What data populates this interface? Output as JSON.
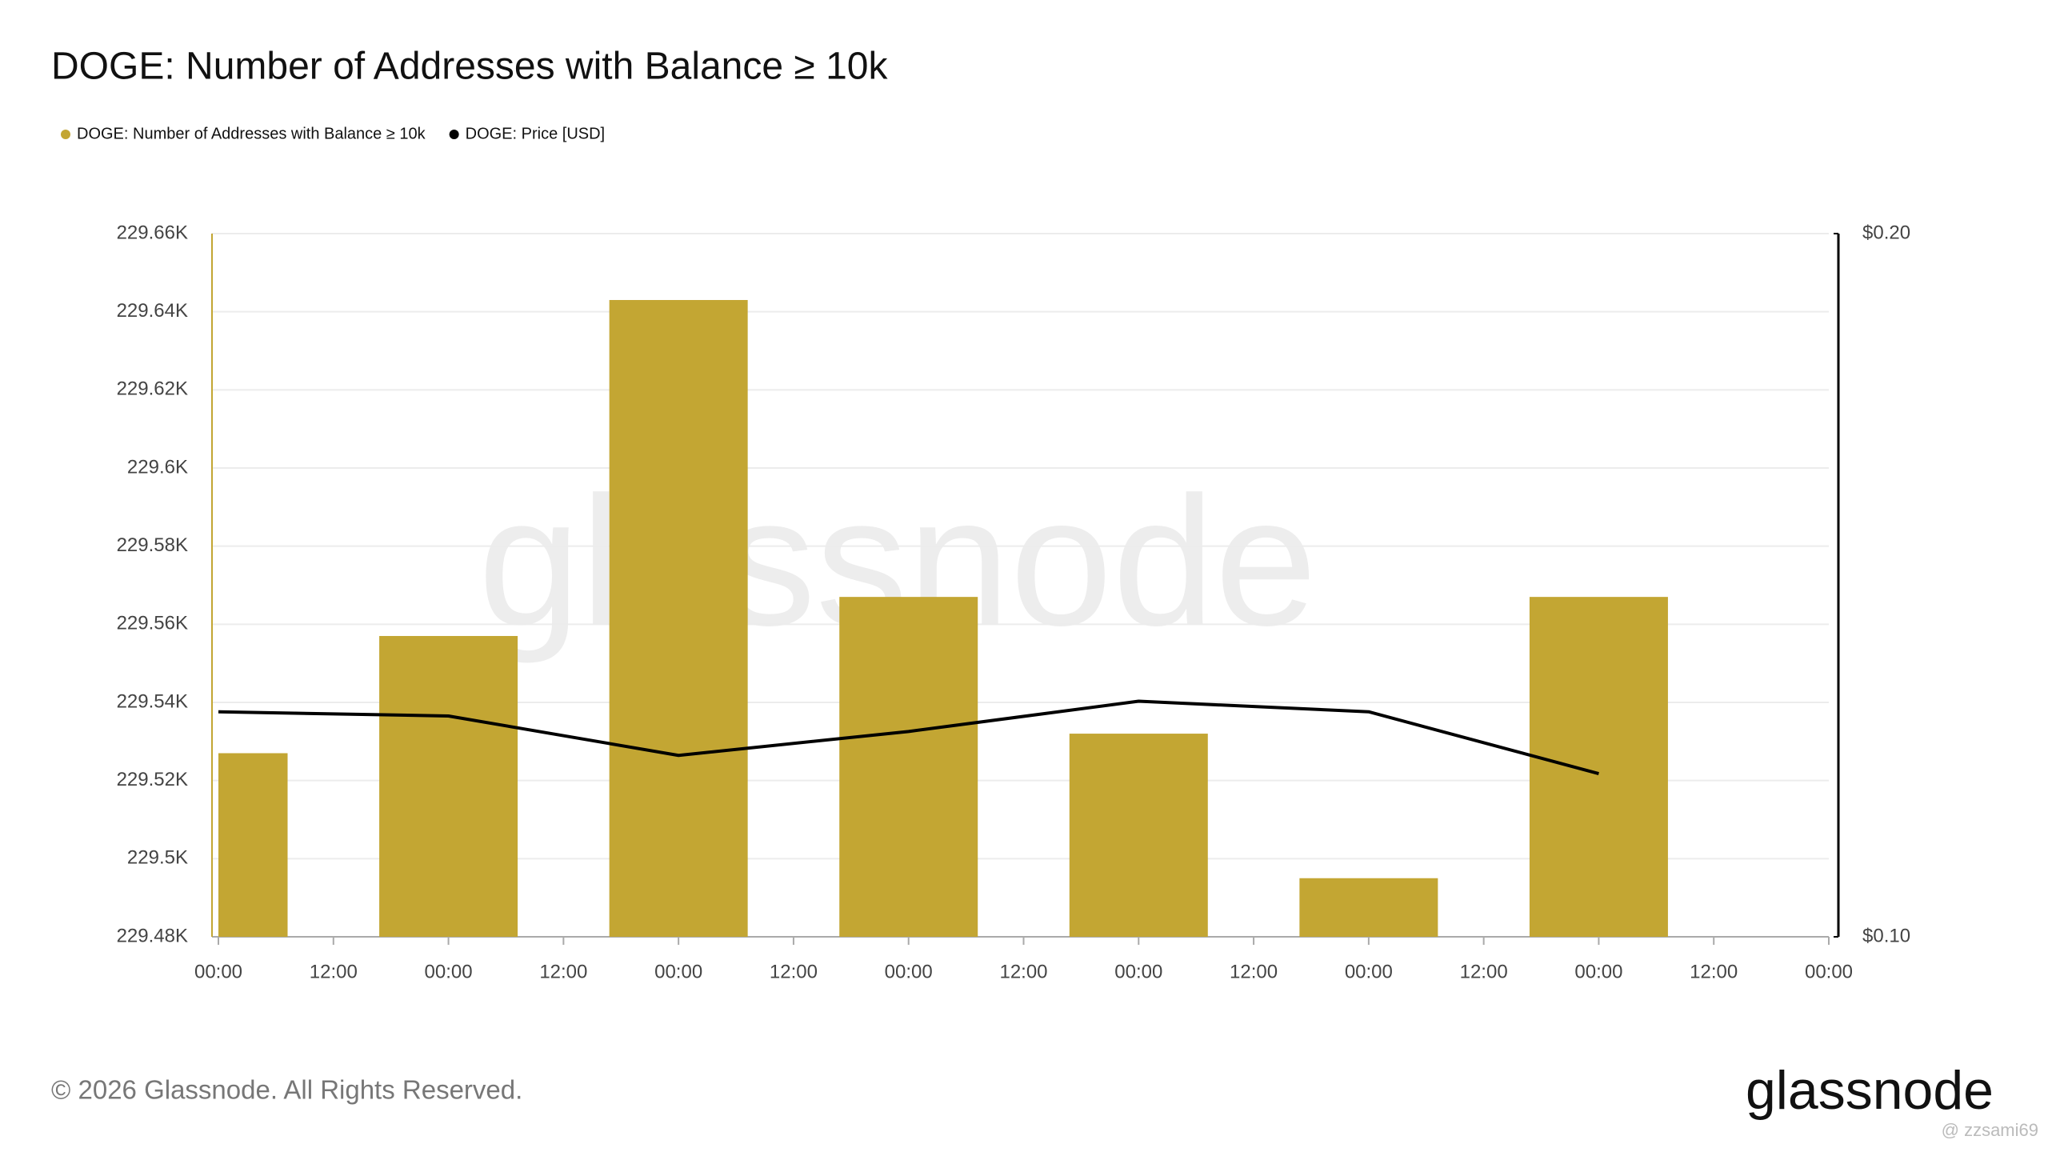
{
  "chart_data": {
    "type": "bar_line",
    "title": "DOGE: Number of Addresses with Balance ≥ 10k",
    "watermark": "glassnode",
    "x": [
      0,
      24,
      48,
      72,
      96,
      120,
      144
    ],
    "xlim": [
      0,
      168
    ],
    "xticks": [
      {
        "value": 0,
        "label": "00:00"
      },
      {
        "value": 12,
        "label": "12:00"
      },
      {
        "value": 24,
        "label": "00:00"
      },
      {
        "value": 36,
        "label": "12:00"
      },
      {
        "value": 48,
        "label": "00:00"
      },
      {
        "value": 60,
        "label": "12:00"
      },
      {
        "value": 72,
        "label": "00:00"
      },
      {
        "value": 84,
        "label": "12:00"
      },
      {
        "value": 96,
        "label": "00:00"
      },
      {
        "value": 108,
        "label": "12:00"
      },
      {
        "value": 120,
        "label": "00:00"
      },
      {
        "value": 132,
        "label": "12:00"
      },
      {
        "value": 144,
        "label": "00:00"
      },
      {
        "value": 156,
        "label": "12:00"
      },
      {
        "value": 168,
        "label": "00:00"
      }
    ],
    "ylim": [
      229480,
      229660
    ],
    "yticks": [
      {
        "value": 229480,
        "label": "229.48K"
      },
      {
        "value": 229500,
        "label": "229.5K"
      },
      {
        "value": 229520,
        "label": "229.52K"
      },
      {
        "value": 229540,
        "label": "229.54K"
      },
      {
        "value": 229560,
        "label": "229.56K"
      },
      {
        "value": 229580,
        "label": "229.58K"
      },
      {
        "value": 229600,
        "label": "229.6K"
      },
      {
        "value": 229620,
        "label": "229.62K"
      },
      {
        "value": 229640,
        "label": "229.64K"
      },
      {
        "value": 229660,
        "label": "229.66K"
      }
    ],
    "y2lim": [
      0.1,
      0.2
    ],
    "y2ticks": [
      {
        "value": 0.1,
        "label": "$0.10"
      },
      {
        "value": 0.2,
        "label": "$0.20"
      }
    ],
    "grid": true,
    "legend": "top-left",
    "series": [
      {
        "name": "DOGE: Number of Addresses with Balance ≥ 10k",
        "type": "bar",
        "color": "#c3a633",
        "values": [
          229527,
          229557,
          229643,
          229567,
          229532,
          229495,
          229567
        ]
      },
      {
        "name": "DOGE: Price [USD]",
        "type": "line",
        "color": "#000000",
        "axis": "y2",
        "values": [
          0.132,
          0.1314,
          0.1258,
          0.1292,
          0.1335,
          0.132,
          0.1232
        ]
      }
    ]
  },
  "footer": {
    "copyright": "© 2026 Glassnode. All Rights Reserved.",
    "logo": "glassnode",
    "credit": "@ zzsami69"
  }
}
